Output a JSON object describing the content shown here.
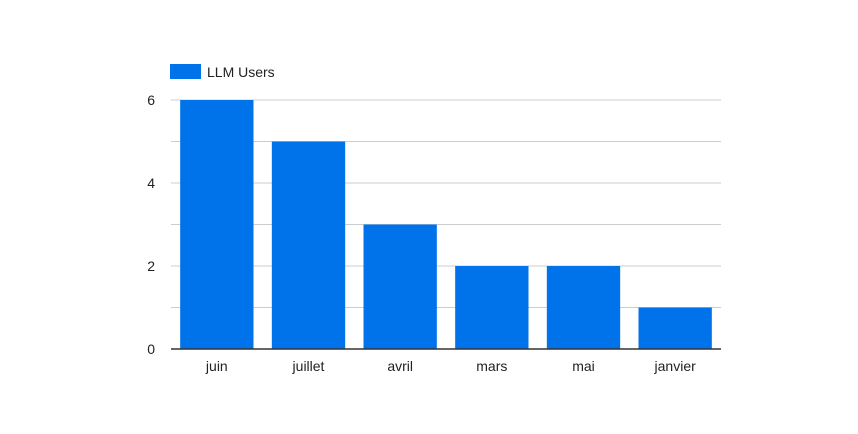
{
  "chart_data": {
    "type": "bar",
    "title": "",
    "xlabel": "",
    "ylabel": "",
    "categories": [
      "juin",
      "juillet",
      "avril",
      "mars",
      "mai",
      "janvier"
    ],
    "series": [
      {
        "name": "LLM Users",
        "color": "#0073EA",
        "values": [
          6,
          5,
          3,
          2,
          2,
          1
        ]
      }
    ],
    "ylim": [
      0,
      6
    ],
    "y_ticks": [
      0,
      2,
      4,
      6
    ],
    "y_minor_gridlines": [
      1,
      3,
      5
    ],
    "grid": true,
    "legend_position": "top-left",
    "gridline_color": "#cccccc",
    "axis_color": "#333333"
  }
}
